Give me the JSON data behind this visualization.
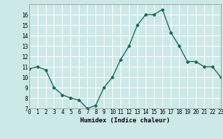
{
  "x": [
    0,
    1,
    2,
    3,
    4,
    5,
    6,
    7,
    8,
    9,
    10,
    11,
    12,
    13,
    14,
    15,
    16,
    17,
    18,
    19,
    20,
    21,
    22,
    23
  ],
  "y": [
    10.8,
    11.0,
    10.7,
    9.0,
    8.3,
    8.0,
    7.8,
    7.0,
    7.3,
    9.0,
    10.0,
    11.7,
    13.0,
    15.0,
    16.0,
    16.0,
    16.5,
    14.3,
    13.0,
    11.5,
    11.5,
    11.0,
    11.0,
    10.0
  ],
  "xlabel": "Humidex (Indice chaleur)",
  "ylim": [
    7,
    17
  ],
  "xlim": [
    0,
    23
  ],
  "yticks": [
    7,
    8,
    9,
    10,
    11,
    12,
    13,
    14,
    15,
    16
  ],
  "xticks": [
    0,
    1,
    2,
    3,
    4,
    5,
    6,
    7,
    8,
    9,
    10,
    11,
    12,
    13,
    14,
    15,
    16,
    17,
    18,
    19,
    20,
    21,
    22,
    23
  ],
  "line_color": "#1a6b5e",
  "bg_color": "#cce8e8",
  "grid_color": "#ffffff",
  "marker": "D",
  "marker_size": 2.0,
  "line_width": 1.0,
  "tick_fontsize": 5.5,
  "xlabel_fontsize": 6.5
}
